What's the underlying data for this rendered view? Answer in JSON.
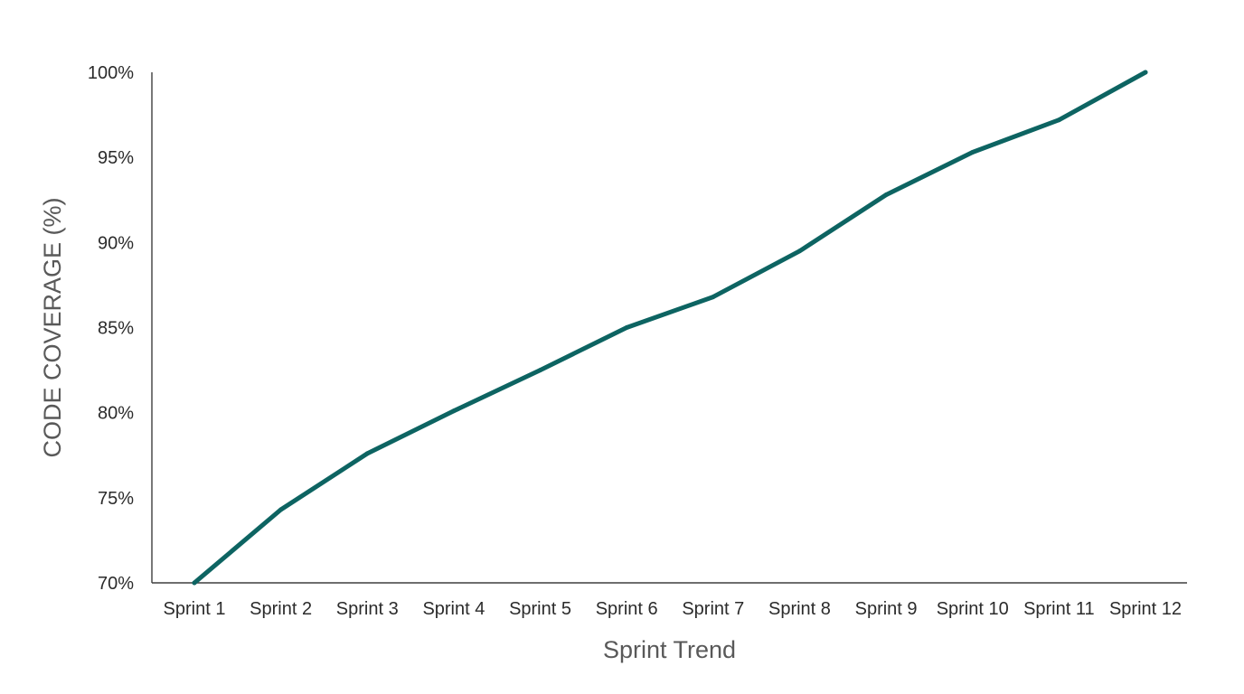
{
  "chart_data": {
    "type": "line",
    "title": "",
    "xlabel": "Sprint Trend",
    "ylabel": "CODE COVERAGE (%)",
    "categories": [
      "Sprint 1",
      "Sprint 2",
      "Sprint 3",
      "Sprint 4",
      "Sprint 5",
      "Sprint 6",
      "Sprint 7",
      "Sprint 8",
      "Sprint 9",
      "Sprint 10",
      "Sprint 11",
      "Sprint 12"
    ],
    "series": [
      {
        "values": [
          70.0,
          74.3,
          77.6,
          80.1,
          82.5,
          85.0,
          86.8,
          89.5,
          92.8,
          95.3,
          97.2,
          100.0
        ],
        "color": "#0d6462"
      }
    ],
    "ylim": [
      70,
      100
    ],
    "yticks": [
      70,
      75,
      80,
      85,
      90,
      95,
      100
    ],
    "ytick_labels": [
      "70%",
      "75%",
      "80%",
      "85%",
      "90%",
      "95%",
      "100%"
    ],
    "grid": false,
    "legend": "none"
  }
}
